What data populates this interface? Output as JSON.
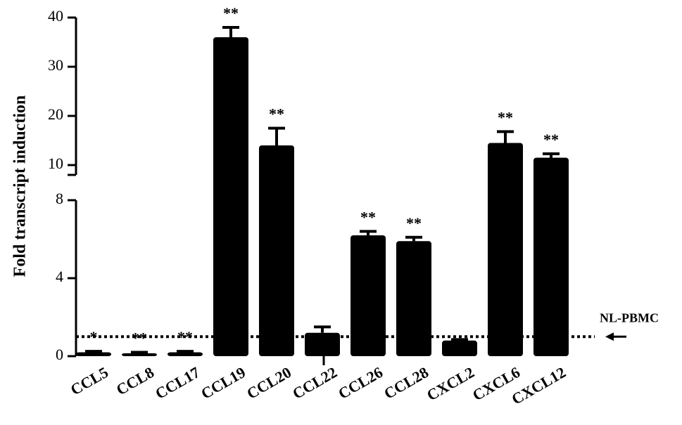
{
  "chart_data": {
    "type": "bar",
    "y_label": "Fold transcript induction",
    "categories": [
      "CCL5",
      "CCL8",
      "CCL17",
      "CCL19",
      "CCL20",
      "CCL22",
      "CCL26",
      "CCL28",
      "CXCL2",
      "CXCL6",
      "CXCL12"
    ],
    "values": [
      0.2,
      0.15,
      0.2,
      36,
      14,
      1.2,
      6.2,
      5.9,
      0.8,
      14.5,
      11.5
    ],
    "errors": [
      0.05,
      0.05,
      0.05,
      2,
      3.5,
      0.3,
      0.2,
      0.2,
      0.05,
      2.3,
      0.8
    ],
    "significance": [
      "*",
      "**",
      "**",
      "**",
      "**",
      null,
      "**",
      "**",
      null,
      "**",
      "**"
    ],
    "color": "#000000",
    "axis_segments": [
      {
        "ylim": [
          0,
          8
        ],
        "yticks": [
          0,
          4,
          8
        ]
      },
      {
        "ylim": [
          8,
          40
        ],
        "yticks": [
          10,
          20,
          30,
          40
        ]
      }
    ],
    "reference_line": {
      "value": 1,
      "label": "NL-PBMC"
    }
  }
}
